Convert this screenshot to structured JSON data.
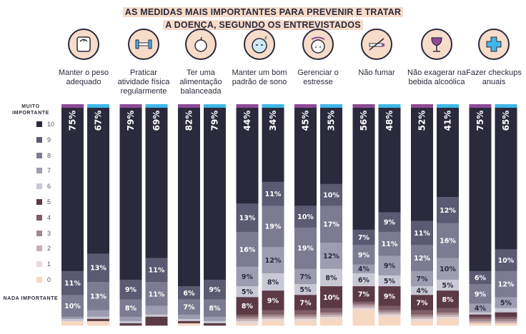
{
  "header": {
    "title_line1": "AS MEDIDAS MAIS IMPORTANTES PARA PREVENIR E TRATAR",
    "title_line2": "A DOENÇA, SEGUNDO OS ENTREVISTADOS"
  },
  "scale": {
    "top_label": "MUITO IMPORTANTE",
    "bottom_label": "NADA IMPORTANTE",
    "levels": [
      {
        "label": "10",
        "color": "#2b2a3d"
      },
      {
        "label": "9",
        "color": "#5b5a72"
      },
      {
        "label": "8",
        "color": "#7c7b92"
      },
      {
        "label": "7",
        "color": "#9d9cb0"
      },
      {
        "label": "6",
        "color": "#c9c8d5"
      },
      {
        "label": "5",
        "color": "#5c3a45"
      },
      {
        "label": "4",
        "color": "#7e5d67"
      },
      {
        "label": "3",
        "color": "#a3878e"
      },
      {
        "label": "2",
        "color": "#c6b0b3"
      },
      {
        "label": "1",
        "color": "#e6d9d8"
      },
      {
        "label": "0",
        "color": "#f6d7c2"
      }
    ]
  },
  "colors": {
    "bar1_cap": "#8e4a96",
    "bar2_cap": "#3fb7e8",
    "label_on_dark": "#ffffff",
    "label_on_light": "#2b2a3d"
  },
  "chart_data": {
    "type": "bar",
    "stacked": true,
    "title": "AS MEDIDAS MAIS IMPORTANTES PARA PREVENIR E TRATAR A DOENÇA, SEGUNDO OS ENTREVISTADOS",
    "ylim": [
      0,
      100
    ],
    "levels": [
      "10",
      "9",
      "8",
      "7",
      "6",
      "5",
      "4",
      "3",
      "2",
      "1",
      "0"
    ],
    "groups": [
      {
        "name": "Manter o peso adequado",
        "icon": "scale-icon",
        "bars": [
          {
            "values": [
              75,
              11,
              10,
              1,
              1,
              0,
              0,
              0,
              0,
              0,
              2
            ],
            "labels": [
              "75%",
              "11%",
              "10%",
              "",
              "",
              "",
              "",
              "",
              "",
              "",
              ""
            ]
          },
          {
            "values": [
              67,
              13,
              13,
              3,
              1,
              1,
              0,
              0,
              0,
              0,
              2
            ],
            "labels": [
              "67%",
              "13%",
              "13%",
              "",
              "",
              "",
              "",
              "",
              "",
              "",
              ""
            ]
          }
        ]
      },
      {
        "name": "Praticar atividade física regularmente",
        "icon": "dumbbell-icon",
        "bars": [
          {
            "values": [
              79,
              9,
              8,
              2,
              1,
              1,
              0,
              0,
              0,
              0,
              0
            ],
            "labels": [
              "79%",
              "9%",
              "8%",
              "",
              "",
              "",
              "",
              "",
              "",
              "",
              ""
            ]
          },
          {
            "values": [
              69,
              11,
              11,
              4,
              1,
              4,
              0,
              0,
              0,
              0,
              0
            ],
            "labels": [
              "69%",
              "11%",
              "11%",
              "",
              "",
              "",
              "",
              "",
              "",
              "",
              ""
            ]
          }
        ]
      },
      {
        "name": "Ter uma alimentação balanceada",
        "icon": "apple-icon",
        "bars": [
          {
            "values": [
              82,
              6,
              7,
              2,
              1,
              1,
              0,
              0,
              0,
              0,
              1
            ],
            "labels": [
              "82%",
              "6%",
              "7%",
              "",
              "",
              "",
              "",
              "",
              "",
              "",
              ""
            ]
          },
          {
            "values": [
              79,
              9,
              8,
              2,
              1,
              1,
              0,
              0,
              0,
              0,
              0
            ],
            "labels": [
              "79%",
              "9%",
              "8%",
              "",
              "",
              "",
              "",
              "",
              "",
              "",
              ""
            ]
          }
        ]
      },
      {
        "name": "Manter um bom padrão de sono",
        "icon": "sleep-icon",
        "bars": [
          {
            "values": [
              44,
              13,
              16,
              9,
              5,
              8,
              1,
              1,
              1,
              1,
              1
            ],
            "labels": [
              "44%",
              "13%",
              "16%",
              "9%",
              "5%",
              "8%",
              "",
              "",
              "",
              "",
              ""
            ]
          },
          {
            "values": [
              34,
              11,
              19,
              12,
              8,
              9,
              2,
              1,
              1,
              1,
              2
            ],
            "labels": [
              "34%",
              "11%",
              "19%",
              "12%",
              "8%",
              "9%",
              "",
              "",
              "",
              "",
              ""
            ]
          }
        ]
      },
      {
        "name": "Gerenciar o estresse",
        "icon": "stress-icon",
        "bars": [
          {
            "values": [
              45,
              10,
              19,
              7,
              5,
              7,
              2,
              1,
              1,
              1,
              2
            ],
            "labels": [
              "45%",
              "10%",
              "19%",
              "7%",
              "5%",
              "7%",
              "",
              "",
              "",
              "",
              ""
            ]
          },
          {
            "values": [
              35,
              10,
              17,
              12,
              8,
              10,
              2,
              1,
              1,
              1,
              3
            ],
            "labels": [
              "35%",
              "10%",
              "17%",
              "12%",
              "8%",
              "10%",
              "",
              "",
              "",
              "",
              ""
            ]
          }
        ]
      },
      {
        "name": "Não fumar",
        "icon": "no-smoking-icon",
        "bars": [
          {
            "values": [
              56,
              7,
              9,
              4,
              6,
              7,
              1,
              1,
              1,
              1,
              7
            ],
            "labels": [
              "56%",
              "7%",
              "9%",
              "4%",
              "6%",
              "7%",
              "",
              "",
              "",
              "",
              ""
            ]
          },
          {
            "values": [
              48,
              9,
              11,
              9,
              5,
              9,
              2,
              1,
              1,
              1,
              4
            ],
            "labels": [
              "48%",
              "9%",
              "11%",
              "9%",
              "5%",
              "9%",
              "",
              "",
              "",
              "",
              ""
            ]
          }
        ]
      },
      {
        "name": "Não exagerar na bebida alcoólica",
        "icon": "wine-glass-icon",
        "bars": [
          {
            "values": [
              52,
              11,
              12,
              7,
              4,
              7,
              2,
              1,
              1,
              1,
              2
            ],
            "labels": [
              "52%",
              "11%",
              "12%",
              "7%",
              "4%",
              "7%",
              "",
              "",
              "",
              "",
              ""
            ]
          },
          {
            "values": [
              41,
              12,
              16,
              10,
              5,
              8,
              2,
              1,
              1,
              1,
              3
            ],
            "labels": [
              "41%",
              "12%",
              "16%",
              "10%",
              "5%",
              "8%",
              "",
              "",
              "",
              "",
              ""
            ]
          }
        ]
      },
      {
        "name": "Fazer checkups anuais",
        "icon": "medical-cross-icon",
        "bars": [
          {
            "values": [
              75,
              6,
              9,
              4,
              1,
              1,
              1,
              1,
              1,
              0,
              1
            ],
            "labels": [
              "75%",
              "6%",
              "9%",
              "4%",
              "",
              "",
              "",
              "",
              "",
              "",
              ""
            ]
          },
          {
            "values": [
              65,
              10,
              12,
              5,
              2,
              2,
              1,
              1,
              1,
              0,
              1
            ],
            "labels": [
              "65%",
              "10%",
              "12%",
              "5%",
              "",
              "",
              "",
              "",
              "",
              "",
              ""
            ]
          }
        ]
      }
    ]
  }
}
